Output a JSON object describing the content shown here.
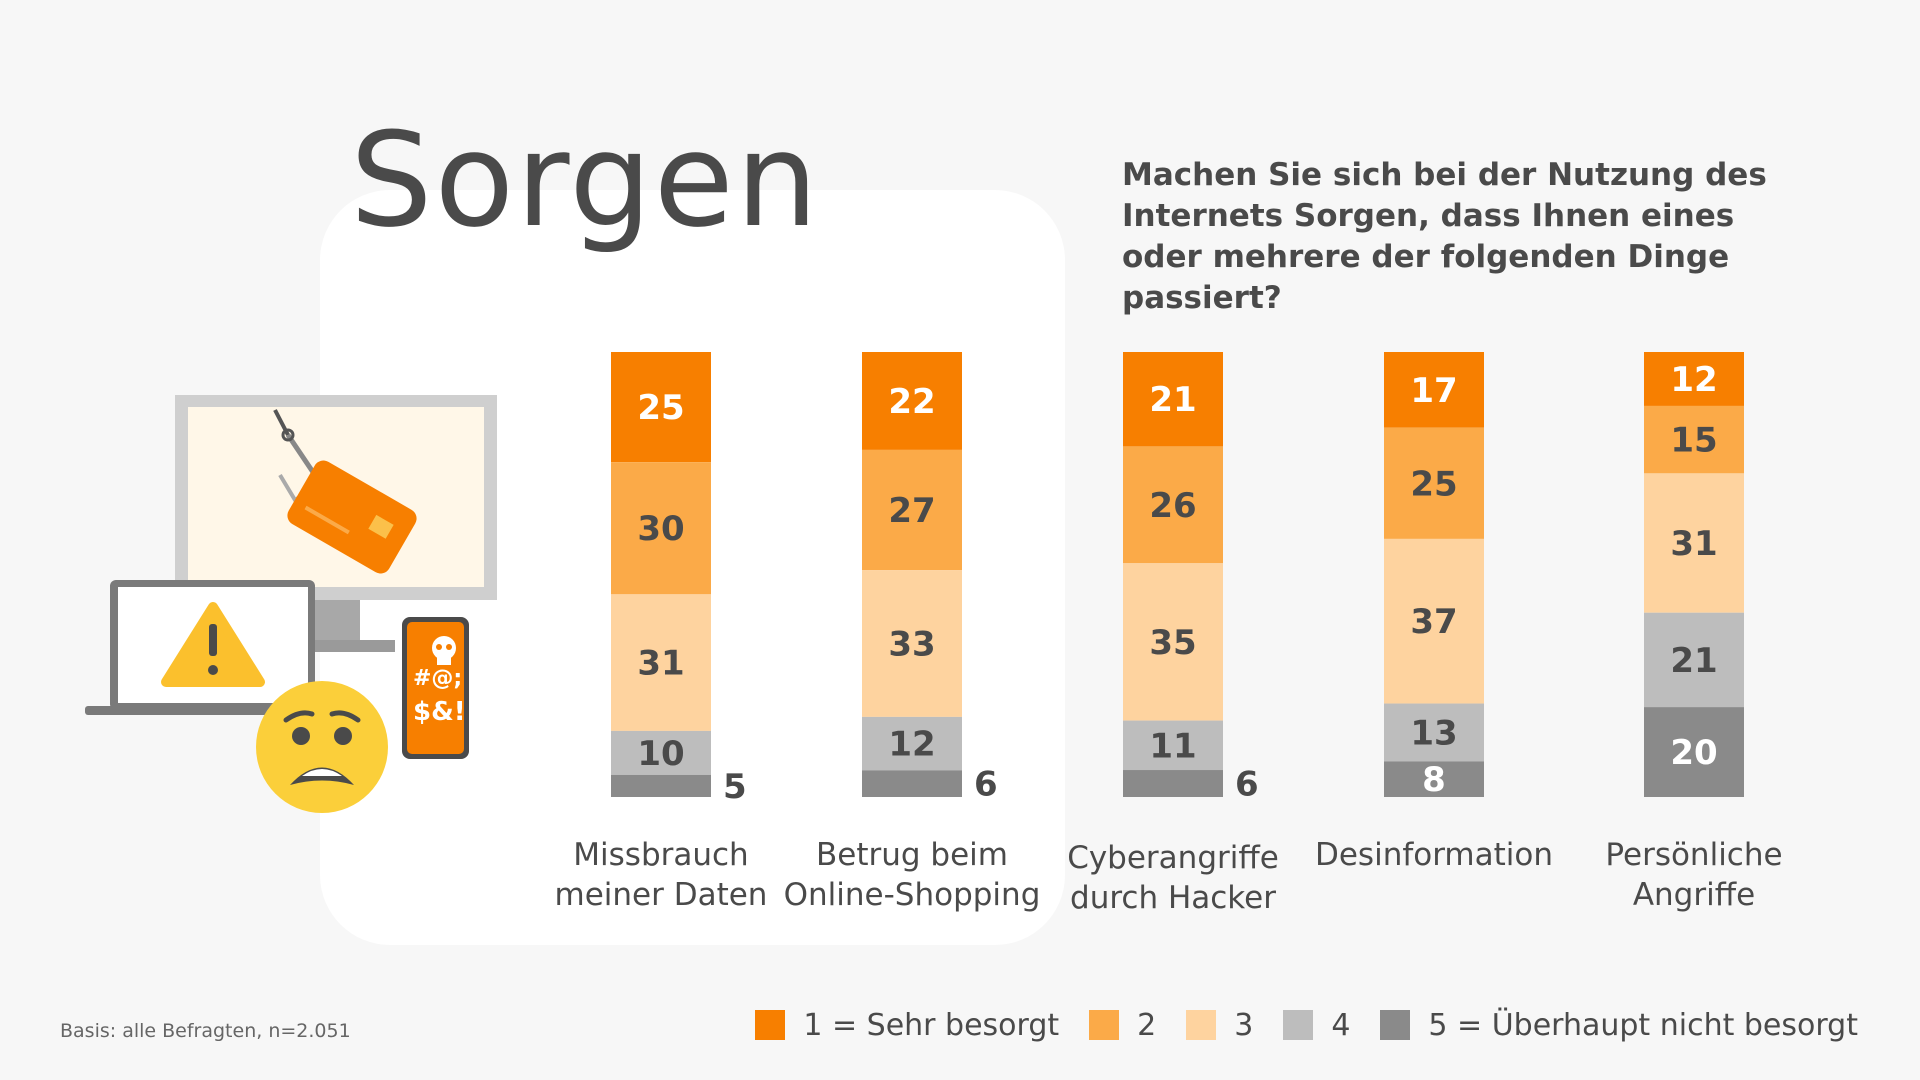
{
  "title": "Sorgen",
  "question": "Machen Sie sich bei der Nutzung des Internets Sorgen, dass Ihnen eines oder mehrere der folgenden Dinge passiert?",
  "base_note": "Basis: alle Befragten, n=2.051",
  "illustration": {
    "icons": [
      "monitor-icon",
      "fishing-hook-icon",
      "credit-card-icon",
      "laptop-icon",
      "warning-icon",
      "worried-face-icon",
      "smartphone-icon",
      "skull-icon"
    ],
    "phone_text": "#@; $&!"
  },
  "colors": {
    "level1": "#f77f00",
    "level2": "#fbaa48",
    "level3": "#fed39f",
    "level4": "#bdbdbd",
    "level5": "#8a8a8a"
  },
  "legend": [
    {
      "label": "1 = Sehr besorgt",
      "color": "#f77f00"
    },
    {
      "label": "2",
      "color": "#fbaa48"
    },
    {
      "label": "3",
      "color": "#fed39f"
    },
    {
      "label": "4",
      "color": "#bdbdbd"
    },
    {
      "label": "5 = Überhaupt nicht besorgt",
      "color": "#8a8a8a"
    }
  ],
  "chart_data": {
    "type": "bar",
    "stacked": true,
    "orientation": "vertical",
    "unit": "%",
    "categories": [
      "Missbrauch meiner Daten",
      "Betrug beim Online-Shopping",
      "Cyberangriffe durch Hacker",
      "Desinformation",
      "Persönliche Angriffe"
    ],
    "category_lines": [
      [
        "Missbrauch",
        "meiner Daten"
      ],
      [
        "Betrug beim",
        "Online-Shopping"
      ],
      [
        "Cyberangriffe",
        "durch Hacker"
      ],
      [
        "Desinformation"
      ],
      [
        "Persönliche",
        "Angriffe"
      ]
    ],
    "series": [
      {
        "name": "1 = Sehr besorgt",
        "values": [
          25,
          22,
          21,
          17,
          12
        ]
      },
      {
        "name": "2",
        "values": [
          30,
          27,
          26,
          25,
          15
        ]
      },
      {
        "name": "3",
        "values": [
          31,
          33,
          35,
          37,
          31
        ]
      },
      {
        "name": "4",
        "values": [
          10,
          12,
          11,
          13,
          21
        ]
      },
      {
        "name": "5 = Überhaupt nicht besorgt",
        "values": [
          5,
          6,
          6,
          8,
          20
        ]
      }
    ],
    "legend_position": "bottom-right",
    "grid": false
  }
}
